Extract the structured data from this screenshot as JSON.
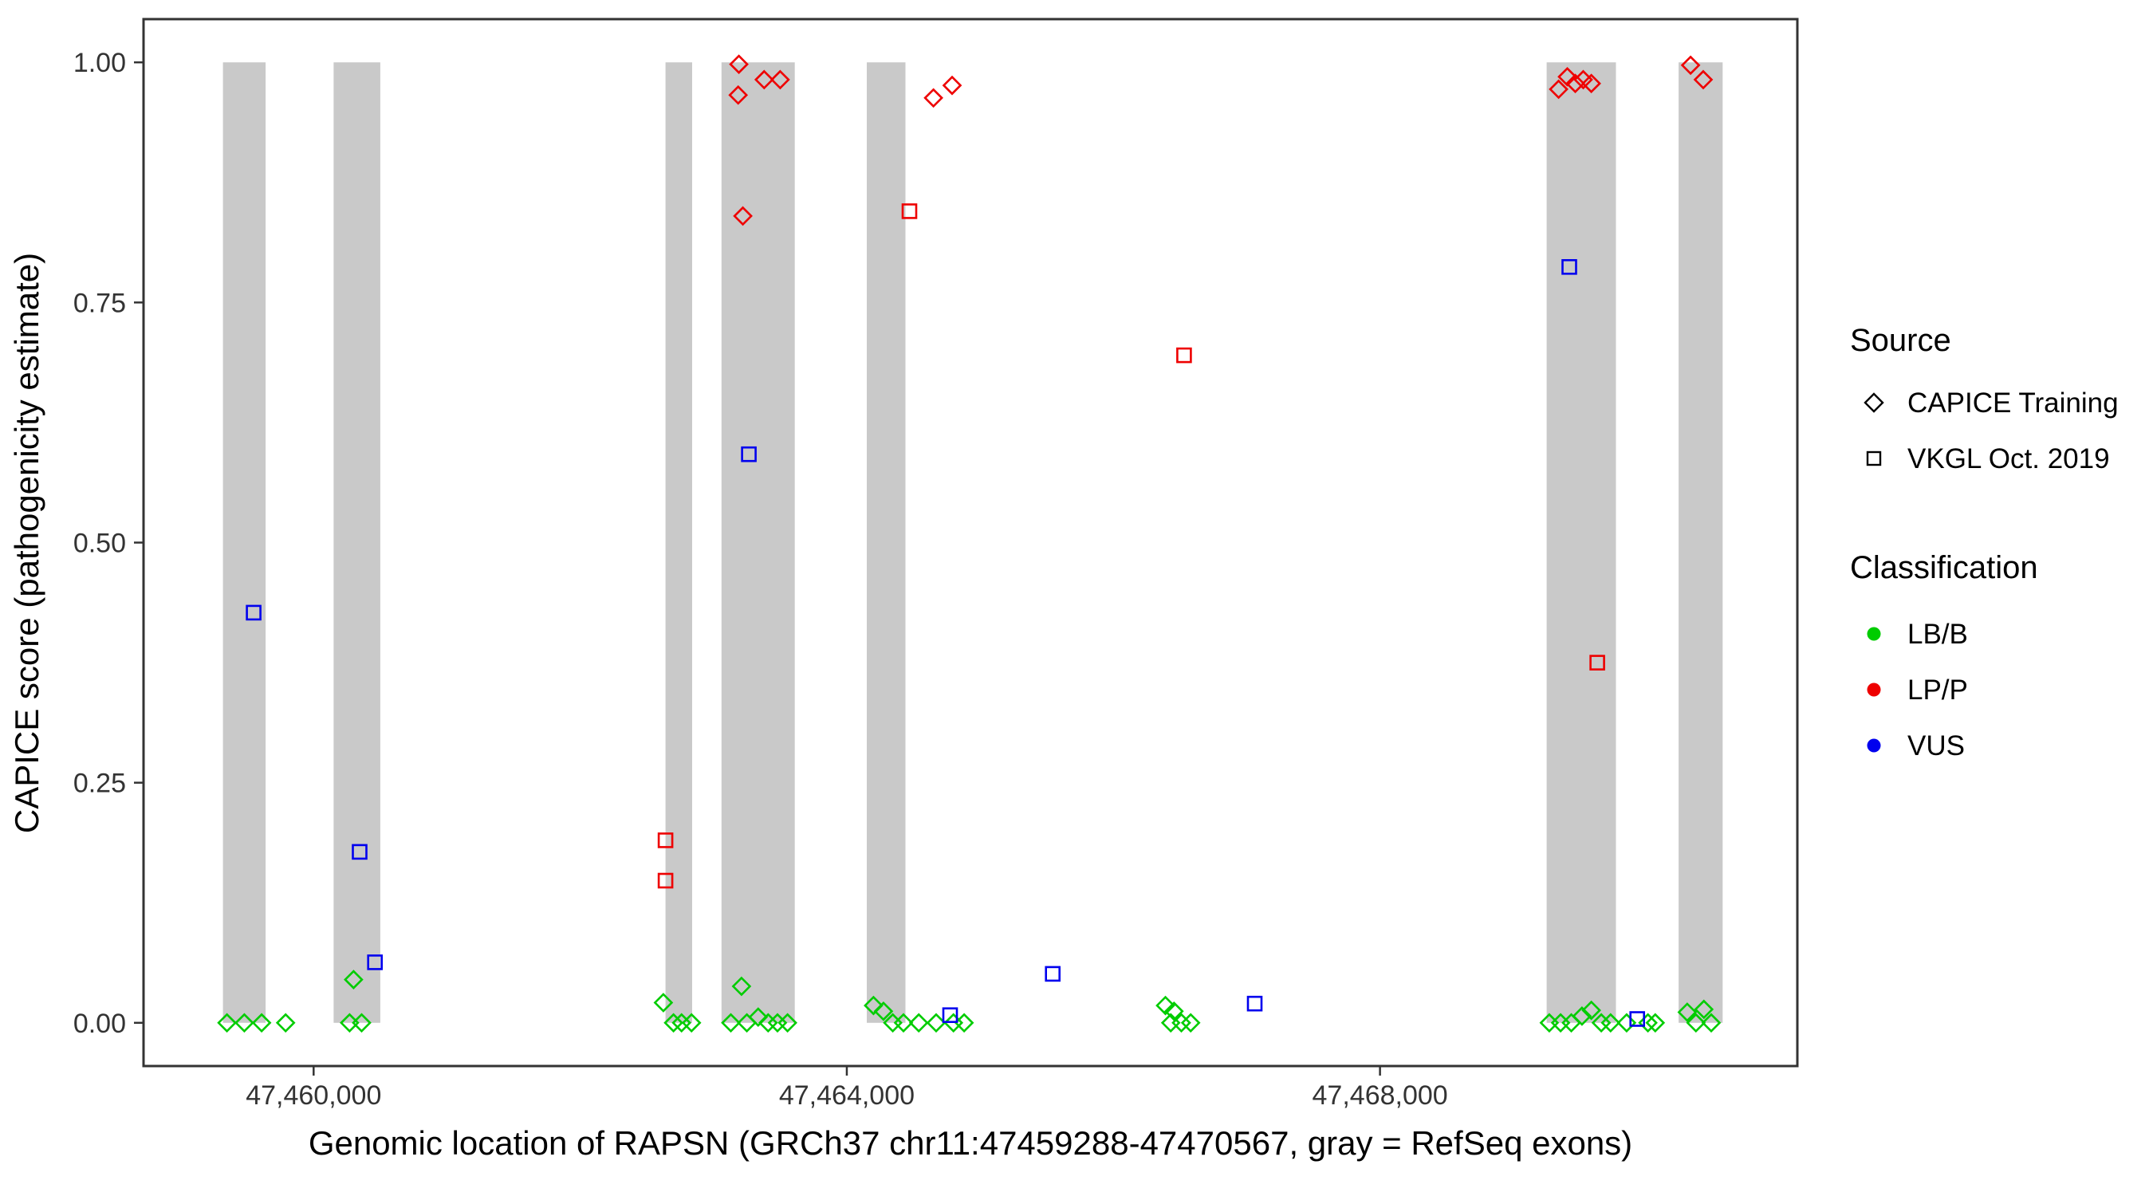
{
  "chart_data": {
    "type": "scatter",
    "title": "",
    "xlabel": "Genomic location of RAPSN (GRCh37 chr11:47459288-47470567, gray = RefSeq exons)",
    "ylabel": "CAPICE score (pathogenicity estimate)",
    "xlim": [
      47458724,
      47471131
    ],
    "ylim": [
      -0.045,
      1.045
    ],
    "grid": "off",
    "legend_position": "right",
    "x_ticks": [
      {
        "value": 47460000,
        "label": "47,460,000"
      },
      {
        "value": 47464000,
        "label": "47,464,000"
      },
      {
        "value": 47468000,
        "label": "47,468,000"
      }
    ],
    "y_ticks": [
      {
        "value": 0.0,
        "label": "0.00"
      },
      {
        "value": 0.25,
        "label": "0.25"
      },
      {
        "value": 0.5,
        "label": "0.50"
      },
      {
        "value": 0.75,
        "label": "0.75"
      },
      {
        "value": 1.0,
        "label": "1.00"
      }
    ],
    "exon_color": "#C9C9C9",
    "exons": [
      [
        47459320,
        47459640
      ],
      [
        47460150,
        47460500
      ],
      [
        47462640,
        47462840
      ],
      [
        47463060,
        47463610
      ],
      [
        47464150,
        47464440
      ],
      [
        47469250,
        47469770
      ],
      [
        47470240,
        47470570
      ]
    ],
    "colors": {
      "lbb": "#00CC00",
      "lpp": "#EE0000",
      "vus": "#0000EE"
    },
    "series": [
      {
        "name": "CAPICE Training / LB/B",
        "source": "CAPICE Training",
        "classification": "LB/B",
        "shape": "diamond",
        "color": "#00CC00",
        "points": [
          [
            47459350,
            0.0
          ],
          [
            47459480,
            0.0
          ],
          [
            47459610,
            0.0
          ],
          [
            47459790,
            0.0
          ],
          [
            47460300,
            0.045
          ],
          [
            47460270,
            0.0
          ],
          [
            47460360,
            0.0
          ],
          [
            47462624,
            0.021
          ],
          [
            47462700,
            0.0
          ],
          [
            47462760,
            0.0
          ],
          [
            47462835,
            0.0
          ],
          [
            47463210,
            0.038
          ],
          [
            47463130,
            0.0
          ],
          [
            47463250,
            0.0
          ],
          [
            47463335,
            0.006
          ],
          [
            47463410,
            0.0
          ],
          [
            47463480,
            0.0
          ],
          [
            47463555,
            0.0
          ],
          [
            47464200,
            0.018
          ],
          [
            47464275,
            0.012
          ],
          [
            47464345,
            0.0
          ],
          [
            47464425,
            0.0
          ],
          [
            47464540,
            0.0
          ],
          [
            47464670,
            0.0
          ],
          [
            47464800,
            0.0
          ],
          [
            47464880,
            0.0
          ],
          [
            47466390,
            0.018
          ],
          [
            47466455,
            0.012
          ],
          [
            47466430,
            0.0
          ],
          [
            47466510,
            0.0
          ],
          [
            47466580,
            0.0
          ],
          [
            47469270,
            0.0
          ],
          [
            47469355,
            0.0
          ],
          [
            47469435,
            0.0
          ],
          [
            47469515,
            0.007
          ],
          [
            47469585,
            0.013
          ],
          [
            47469660,
            0.0
          ],
          [
            47469730,
            0.0
          ],
          [
            47469850,
            0.0
          ],
          [
            47470010,
            0.0
          ],
          [
            47470065,
            0.0
          ],
          [
            47470305,
            0.011
          ],
          [
            47470370,
            0.0
          ],
          [
            47470430,
            0.014
          ],
          [
            47470485,
            0.0
          ]
        ]
      },
      {
        "name": "CAPICE Training / LP/P",
        "source": "CAPICE Training",
        "classification": "LP/P",
        "shape": "diamond",
        "color": "#EE0000",
        "points": [
          [
            47463190,
            0.998
          ],
          [
            47463185,
            0.966
          ],
          [
            47463380,
            0.982
          ],
          [
            47463500,
            0.982
          ],
          [
            47463220,
            0.84
          ],
          [
            47464650,
            0.963
          ],
          [
            47464790,
            0.976
          ],
          [
            47469340,
            0.972
          ],
          [
            47469405,
            0.985
          ],
          [
            47469465,
            0.978
          ],
          [
            47469525,
            0.982
          ],
          [
            47469585,
            0.978
          ],
          [
            47470330,
            0.997
          ],
          [
            47470425,
            0.982
          ]
        ]
      },
      {
        "name": "VKGL Oct. 2019 / LP/P",
        "source": "VKGL Oct. 2019",
        "classification": "LP/P",
        "shape": "square",
        "color": "#EE0000",
        "points": [
          [
            47462640,
            0.19
          ],
          [
            47462640,
            0.148
          ],
          [
            47464470,
            0.845
          ],
          [
            47466530,
            0.695
          ],
          [
            47469630,
            0.375
          ]
        ]
      },
      {
        "name": "VKGL Oct. 2019 / VUS",
        "source": "VKGL Oct. 2019",
        "classification": "VUS",
        "shape": "square",
        "color": "#0000EE",
        "points": [
          [
            47459550,
            0.427
          ],
          [
            47460345,
            0.178
          ],
          [
            47460460,
            0.063
          ],
          [
            47463265,
            0.592
          ],
          [
            47464775,
            0.008
          ],
          [
            47465545,
            0.051
          ],
          [
            47467060,
            0.02
          ],
          [
            47469420,
            0.787
          ],
          [
            47469930,
            0.004
          ]
        ]
      }
    ]
  },
  "legend": {
    "source": {
      "title": "Source",
      "items": [
        {
          "label": "CAPICE Training",
          "shape": "diamond"
        },
        {
          "label": "VKGL Oct. 2019",
          "shape": "square"
        }
      ]
    },
    "classification": {
      "title": "Classification",
      "items": [
        {
          "label": "LB/B",
          "color": "#00CC00"
        },
        {
          "label": "LP/P",
          "color": "#EE0000"
        },
        {
          "label": "VUS",
          "color": "#0000EE"
        }
      ]
    }
  }
}
